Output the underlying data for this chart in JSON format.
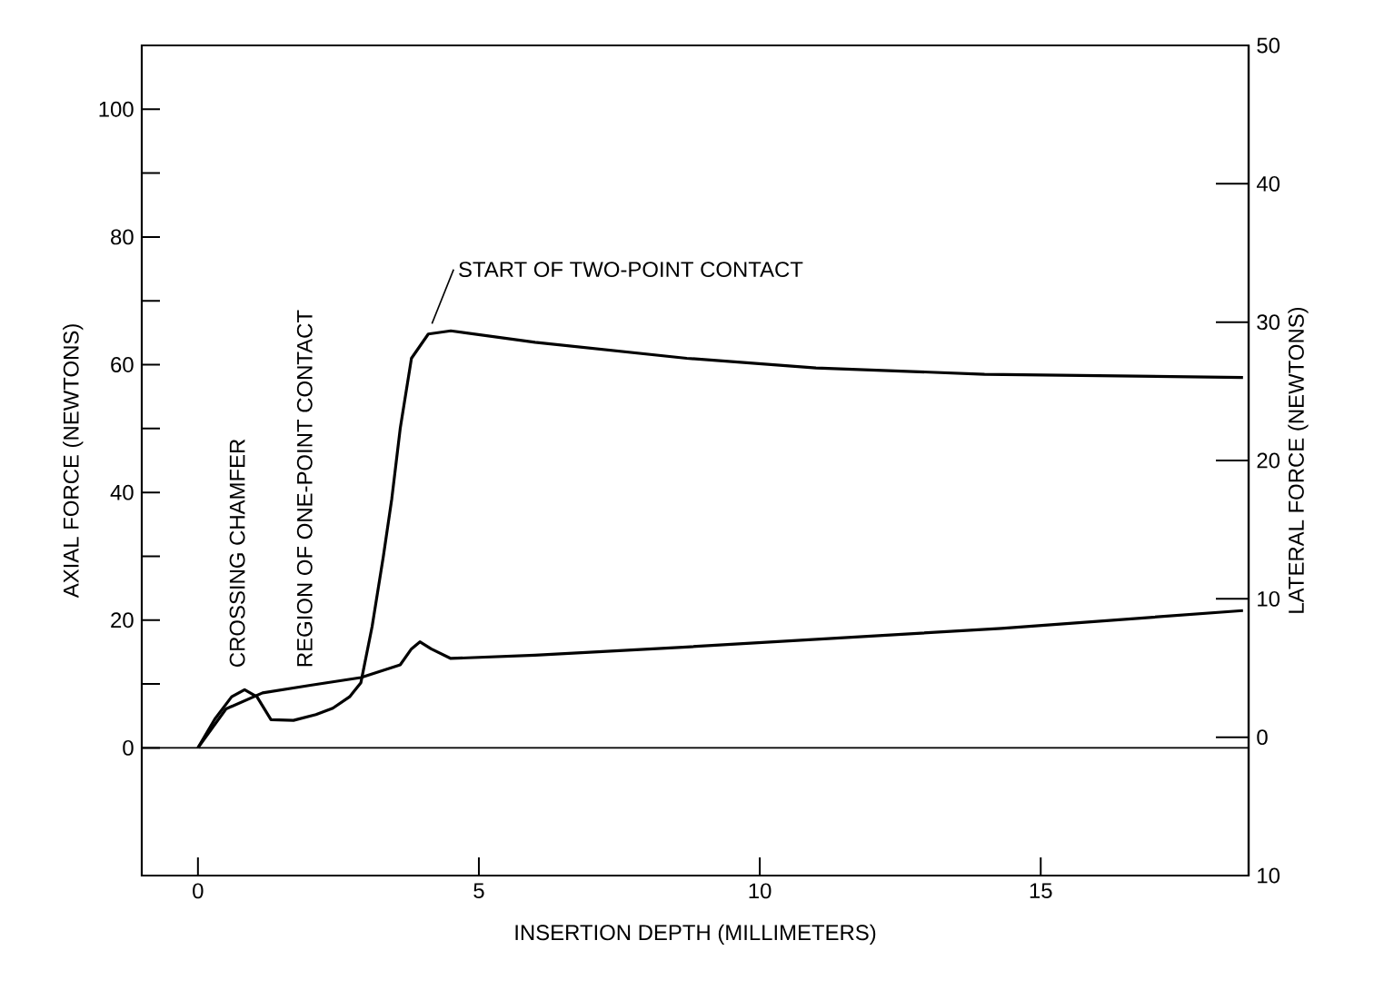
{
  "chart_data": {
    "type": "line",
    "xlabel": "INSERTION DEPTH (MILLIMETERS)",
    "ylabel": "AXIAL FORCE (NEWTONS)",
    "y2label": "LATERAL FORCE (NEWTONS)",
    "xlim": [
      -1,
      18.7
    ],
    "xticks": [
      0,
      5,
      10,
      15
    ],
    "ylim": [
      -20,
      110
    ],
    "yticks": [
      0,
      {
        "value": 10,
        "label": null
      },
      20,
      {
        "value": 30,
        "label": null
      },
      40,
      {
        "value": 50,
        "label": null
      },
      60,
      {
        "value": 70,
        "label": null
      },
      80,
      {
        "value": 90,
        "label": null
      },
      100
    ],
    "y2lim": [
      -10,
      50
    ],
    "y2ticks": [
      {
        "value": -10,
        "label": "10"
      },
      0,
      10,
      20,
      30,
      40,
      50
    ],
    "marker": "none",
    "line_style": "solid",
    "ref_lines": [
      {
        "axis": "y",
        "value": 0
      }
    ],
    "annotations": [
      "CROSSING CHAMFER",
      "REGION OF ONE-POINT CONTACT",
      {
        "text": "START OF TWO-POINT CONTACT",
        "x": 4.1,
        "y": 65
      }
    ],
    "series": [
      {
        "color": "#000000",
        "x": [
          0,
          0.3,
          0.6,
          0.83,
          1.05,
          1.3,
          1.7,
          2.1,
          2.4,
          2.7,
          2.9,
          3.1,
          3.3,
          3.45,
          3.6,
          3.8,
          4.1,
          4.5,
          6,
          8.7,
          11,
          14,
          18.6
        ],
        "values": [
          0,
          4.5,
          8,
          9.1,
          8,
          4.4,
          4.3,
          5.2,
          6.2,
          8,
          10.2,
          19,
          30,
          39,
          50,
          61,
          64.8,
          65.3,
          63.5,
          61,
          59.5,
          58.5,
          58
        ]
      },
      {
        "color": "#000000",
        "x": [
          0,
          0.5,
          1.15,
          2,
          2.9,
          3.6,
          3.8,
          3.95,
          4.15,
          4.5,
          6,
          8.7,
          14.3,
          18.6
        ],
        "values": [
          0,
          6.1,
          8.6,
          9.8,
          11,
          13,
          15.5,
          16.6,
          15.5,
          14,
          14.5,
          15.8,
          18.7,
          21.5
        ]
      }
    ]
  }
}
